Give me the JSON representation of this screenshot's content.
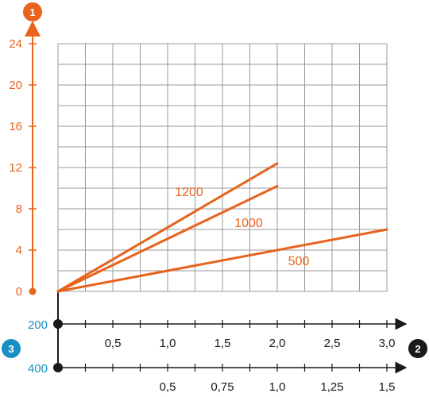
{
  "colors": {
    "accent": "#e8631c",
    "axis": "#1a1a1a",
    "grid": "#999999",
    "blue": "#1a8fc6",
    "badge_dark": "#1a1a1a"
  },
  "badges": {
    "y_axis": "1",
    "x_axis": "2",
    "lower_axes": "3"
  },
  "chart_data": {
    "type": "line",
    "grid": true,
    "x": {
      "range": [
        0,
        3.0
      ],
      "ticks": [
        0.5,
        1.0,
        1.5,
        2.0,
        2.5,
        3.0
      ],
      "tick_labels": [
        "0,5",
        "1,0",
        "1,5",
        "2,0",
        "2,5",
        "3,0"
      ],
      "origin_label": "200"
    },
    "x_secondary": {
      "range": [
        0,
        1.5
      ],
      "ticks": [
        0.5,
        0.75,
        1.0,
        1.25,
        1.5
      ],
      "tick_labels": [
        "0,5",
        "0,75",
        "1,0",
        "1,25",
        "1,5"
      ],
      "origin_label": "400"
    },
    "y": {
      "range": [
        0,
        24
      ],
      "ticks": [
        0,
        4,
        8,
        12,
        16,
        20,
        24
      ],
      "tick_labels": [
        "0",
        "4",
        "8",
        "12",
        "16",
        "20",
        "24"
      ]
    },
    "series": [
      {
        "name": "1200",
        "x": [
          0,
          2.0
        ],
        "y": [
          0,
          12.4
        ]
      },
      {
        "name": "1000",
        "x": [
          0,
          2.0
        ],
        "y": [
          0,
          10.2
        ]
      },
      {
        "name": "500",
        "x": [
          0,
          3.0
        ],
        "y": [
          0,
          6.0
        ]
      }
    ]
  }
}
